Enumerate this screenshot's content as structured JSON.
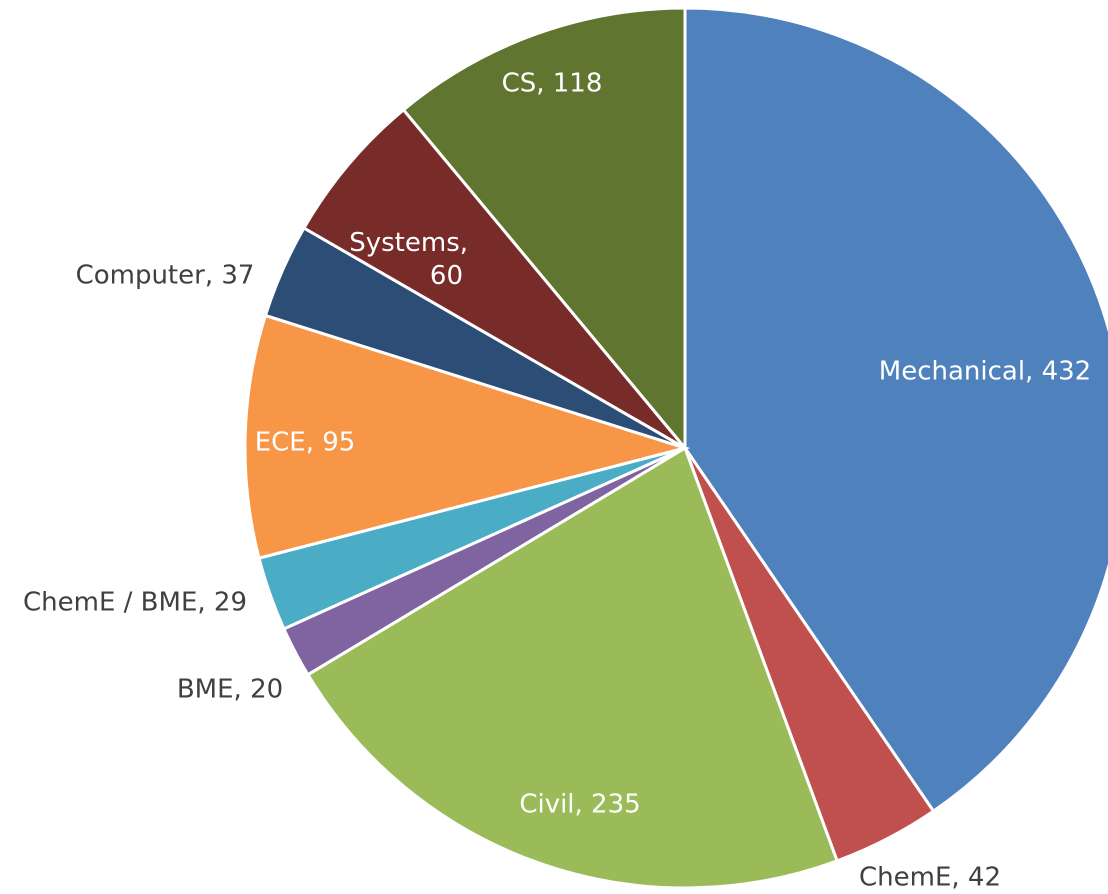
{
  "chart_data": {
    "type": "pie",
    "categories": [
      "Mechanical",
      "ChemE",
      "Civil",
      "BME",
      "ChemE / BME",
      "ECE",
      "Computer",
      "Systems",
      "CS"
    ],
    "values": [
      432,
      42,
      235,
      20,
      29,
      95,
      37,
      60,
      118
    ],
    "value_labels": [
      "Mechanical, 432",
      "ChemE, 42",
      "Civil, 235",
      "BME, 20",
      "ChemE / BME, 29",
      "ECE, 95",
      "Computer, 37",
      "Systems, 60",
      "CS, 118"
    ],
    "colors": [
      "#4f81bd",
      "#c0504d",
      "#9bbb59",
      "#8064a2",
      "#4bacc6",
      "#f79646",
      "#2c4d75",
      "#772c2a",
      "#5f7530"
    ]
  }
}
